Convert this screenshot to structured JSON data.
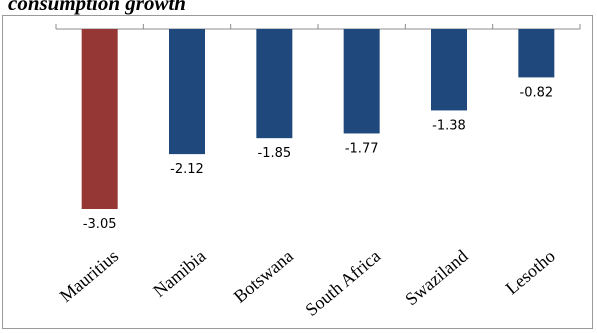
{
  "header": {
    "title": "consumption growth"
  },
  "chart_data": {
    "type": "bar",
    "title": "consumption growth",
    "categories": [
      "Mauritius",
      "Namibia",
      "Botswana",
      "South Africa",
      "Swaziland",
      "Lesotho"
    ],
    "values": [
      -3.05,
      -2.12,
      -1.85,
      -1.77,
      -1.38,
      -0.82
    ],
    "colors": [
      "#953735",
      "#1f497d",
      "#1f497d",
      "#1f497d",
      "#1f497d",
      "#1f497d"
    ],
    "ylim": [
      -3.05,
      0
    ],
    "grid": false,
    "legend": "none"
  }
}
